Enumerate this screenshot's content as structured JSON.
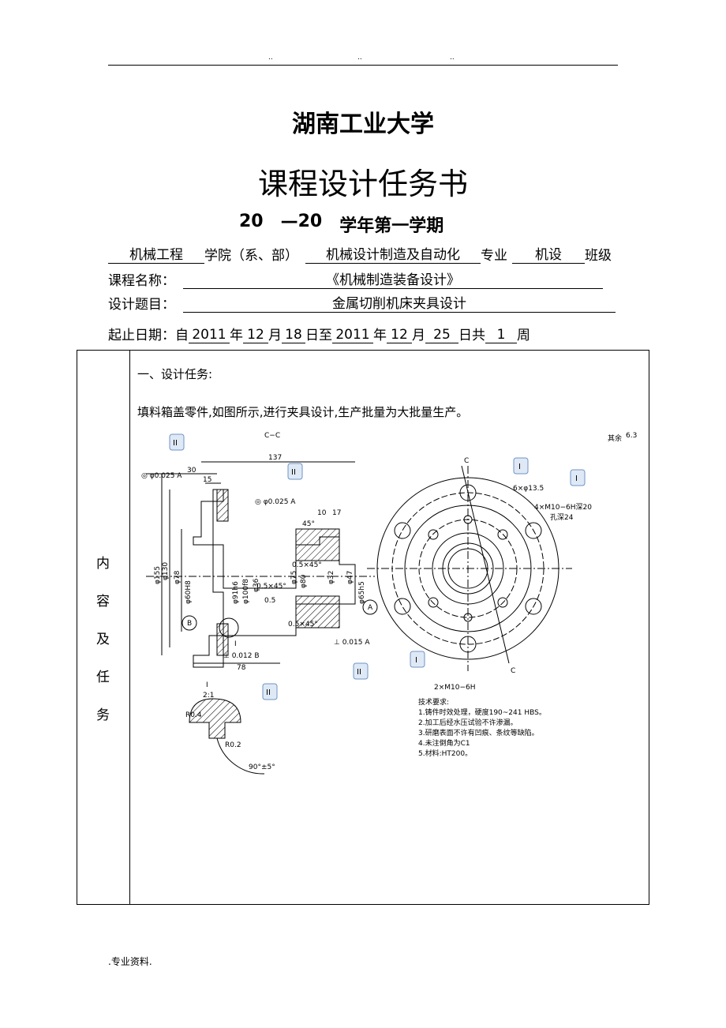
{
  "header": {
    "marks": [
      "..",
      "..",
      ".."
    ]
  },
  "title": "湖南工业大学",
  "subtitle": "课程设计任务书",
  "term": [
    "20",
    "—20",
    "学年第一学期"
  ],
  "info": {
    "row1": [
      "机械工程",
      "学院（系、部）",
      "机械设计制造及自动化",
      "专业",
      "机设",
      "班级"
    ],
    "course": {
      "label": "课程名称：",
      "value": "《机械制造装备设计》"
    },
    "topic": {
      "label": "设计题目：",
      "value": "金属切削机床夹具设计"
    },
    "dates": [
      "起止日期：自",
      "2011",
      "年",
      "12",
      "月",
      "18",
      "日至",
      "2011",
      "年",
      "12",
      "月",
      "25",
      "日共",
      "1",
      "周"
    ]
  },
  "table": {
    "side": [
      "内",
      "容",
      "及",
      "任",
      "务"
    ],
    "heading": "一、设计任务:",
    "text": "填料箱盖零件,如图所示,进行夹具设计,生产批量为大批量生产。"
  },
  "drawing": {
    "labels": [
      "C−C",
      "137",
      "30",
      "15",
      "◎ φ0.025 A",
      "◎ φ0.025 A",
      "10",
      "17",
      "45°",
      "φ155",
      "φ130",
      "φ78",
      "φ60H8",
      "φ91h6",
      "φ100f8",
      "φ36",
      "φ75",
      "φ80",
      "φ32",
      "φ47",
      "φ65h5",
      "0.5×45°",
      "0.5×45°",
      "0.5",
      "0.5×45°",
      "⊥ 0.012 B",
      "⊥ 0.015 A",
      "78",
      "B",
      "A",
      "I",
      "I",
      "2:1",
      "R0.4",
      "R0.2",
      "90°±5°",
      "其余",
      "6.3",
      "C",
      "C",
      "6×φ13.5",
      "4×M10−6H深20",
      "孔深24",
      "2×M10−6H"
    ],
    "requirements": [
      "技术要求:",
      "1.铸件时效处理，硬度190~241 HBS。",
      "2.加工后经水压试验不许渗漏。",
      "3.研磨表面不许有凹痕、条纹等缺陷。",
      "4.未注倒角为C1",
      "5.材料:HT200。"
    ],
    "callouts": [
      "II",
      "II",
      "I",
      "I",
      "I",
      "II",
      "II"
    ]
  },
  "footer": ".专业资料."
}
